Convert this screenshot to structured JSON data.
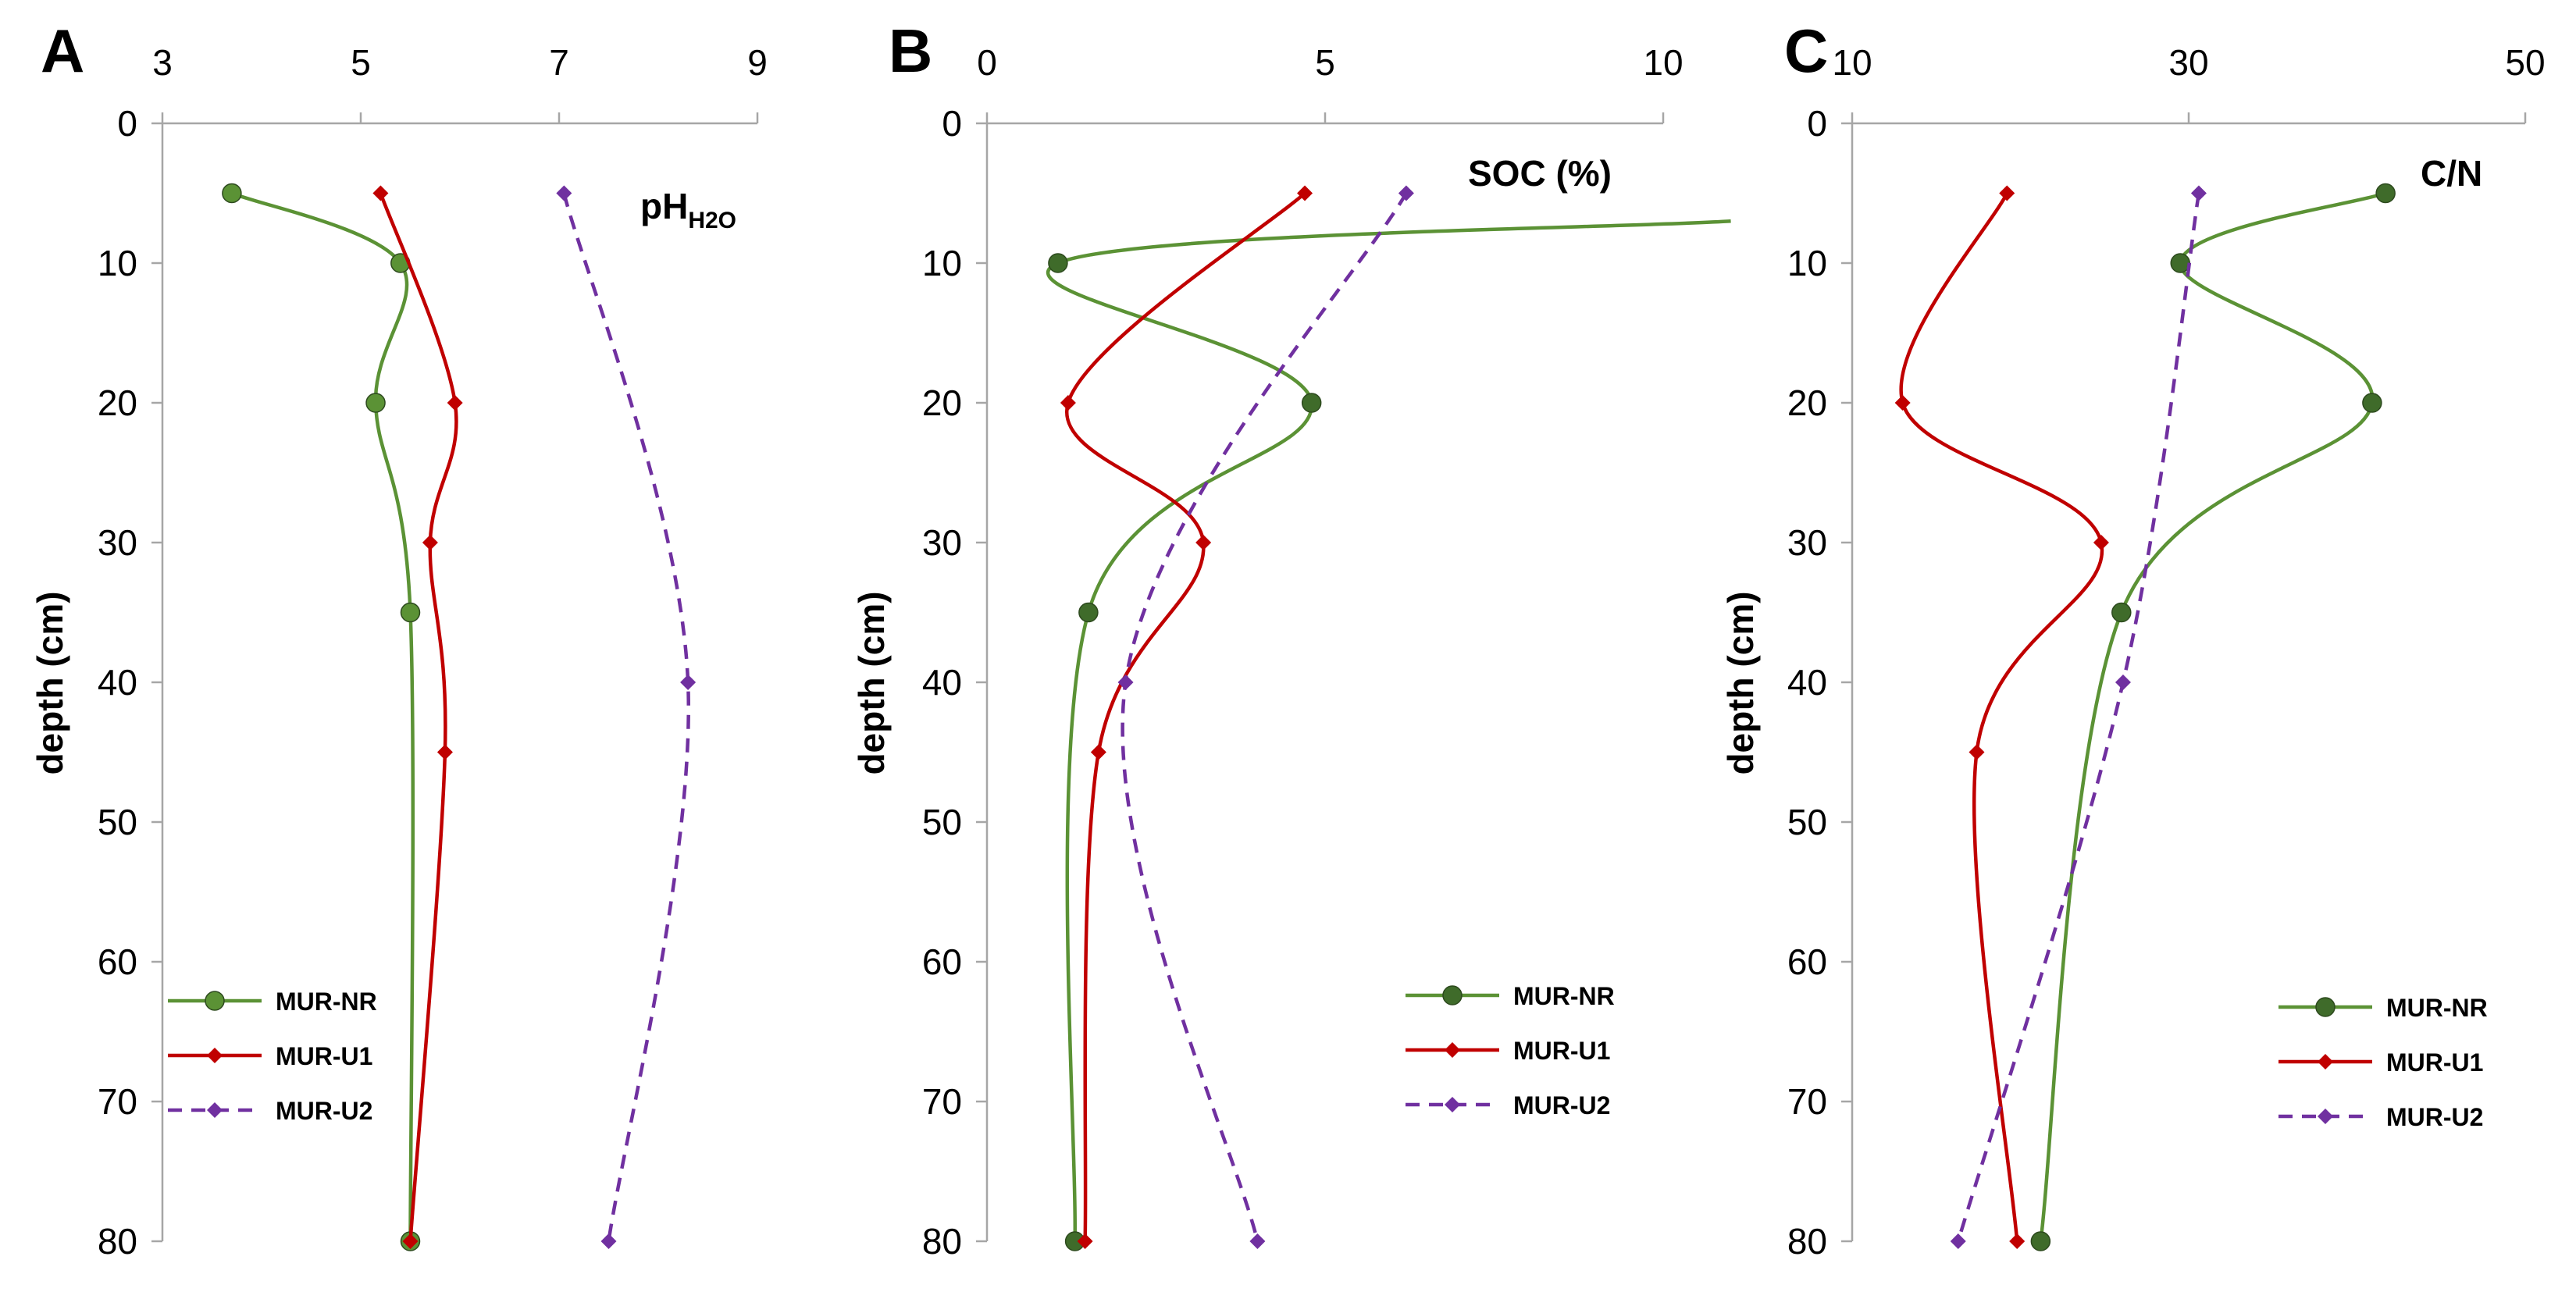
{
  "figure": {
    "colors": {
      "MUR-NR_A": "#5b9235",
      "MUR-NR": "#3f6b2a",
      "MUR-NR_line": "#5b9235",
      "MUR-U1": "#c00000",
      "MUR-U2": "#7030a0",
      "axis": "#a6a6a6",
      "text": "#000000"
    }
  },
  "chart_data": [
    {
      "panel": "A",
      "type": "line",
      "orientation": "depth-profile",
      "title": "pH",
      "title_subscript": "H2O",
      "ylabel": "depth (cm)",
      "xlim": [
        3,
        9
      ],
      "ylim": [
        0,
        80
      ],
      "y_inverted": true,
      "x_ticks": [
        "3",
        "5",
        "7",
        "9"
      ],
      "y_ticks": [
        "0",
        "10",
        "20",
        "30",
        "40",
        "50",
        "60",
        "70",
        "80"
      ],
      "legend": [
        "MUR-NR",
        "MUR-U1",
        "MUR-U2"
      ],
      "legend_position": "bottom-left",
      "series": [
        {
          "name": "MUR-NR",
          "color_key": "MUR-NR_A",
          "marker": "circle",
          "dash": false,
          "points": [
            [
              3.7,
              5
            ],
            [
              5.4,
              10
            ],
            [
              5.15,
              20
            ],
            [
              5.5,
              35
            ],
            [
              5.5,
              80
            ]
          ]
        },
        {
          "name": "MUR-U1",
          "color_key": "MUR-U1",
          "marker": "diamond",
          "dash": false,
          "points": [
            [
              5.2,
              5
            ],
            [
              5.95,
              20
            ],
            [
              5.7,
              30
            ],
            [
              5.85,
              45
            ],
            [
              5.5,
              80
            ]
          ]
        },
        {
          "name": "MUR-U2",
          "color_key": "MUR-U2",
          "marker": "diamond",
          "dash": true,
          "points": [
            [
              7.05,
              5
            ],
            [
              8.3,
              40
            ],
            [
              7.5,
              80
            ]
          ]
        }
      ]
    },
    {
      "panel": "B",
      "type": "line",
      "orientation": "depth-profile",
      "title": "SOC (%)",
      "ylabel": "depth (cm)",
      "xlim": [
        0,
        10
      ],
      "ylim": [
        0,
        80
      ],
      "y_inverted": true,
      "x_ticks": [
        "0",
        "5",
        "10"
      ],
      "y_ticks": [
        "0",
        "10",
        "20",
        "30",
        "40",
        "50",
        "60",
        "70",
        "80"
      ],
      "legend": [
        "MUR-NR",
        "MUR-U1",
        "MUR-U2"
      ],
      "legend_position": "bottom-right",
      "series": [
        {
          "name": "MUR-NR",
          "color_key": "MUR-NR",
          "marker": "circle",
          "dash": false,
          "points": [
            [
              11,
              7
            ],
            [
              1.05,
              10
            ],
            [
              4.8,
              20
            ],
            [
              1.5,
              35
            ],
            [
              1.3,
              80
            ]
          ]
        },
        {
          "name": "MUR-U1",
          "color_key": "MUR-U1",
          "marker": "diamond",
          "dash": false,
          "points": [
            [
              4.7,
              5
            ],
            [
              1.2,
              20
            ],
            [
              3.2,
              30
            ],
            [
              1.65,
              45
            ],
            [
              1.45,
              80
            ]
          ]
        },
        {
          "name": "MUR-U2",
          "color_key": "MUR-U2",
          "marker": "diamond",
          "dash": true,
          "points": [
            [
              6.2,
              5
            ],
            [
              2.05,
              40
            ],
            [
              4.0,
              80
            ]
          ]
        }
      ]
    },
    {
      "panel": "C",
      "type": "line",
      "orientation": "depth-profile",
      "title": "C/N",
      "ylabel": "depth (cm)",
      "xlim": [
        10,
        50
      ],
      "ylim": [
        0,
        80
      ],
      "y_inverted": true,
      "x_ticks": [
        "10",
        "30",
        "50"
      ],
      "y_ticks": [
        "0",
        "10",
        "20",
        "30",
        "40",
        "50",
        "60",
        "70",
        "80"
      ],
      "legend": [
        "MUR-NR",
        "MUR-U1",
        "MUR-U2"
      ],
      "legend_position": "bottom-right",
      "series": [
        {
          "name": "MUR-NR",
          "color_key": "MUR-NR",
          "marker": "circle",
          "dash": false,
          "points": [
            [
              41.7,
              5
            ],
            [
              29.5,
              10
            ],
            [
              40.9,
              20
            ],
            [
              26.0,
              35
            ],
            [
              21.2,
              80
            ]
          ]
        },
        {
          "name": "MUR-U1",
          "color_key": "MUR-U1",
          "marker": "diamond",
          "dash": false,
          "points": [
            [
              19.2,
              5
            ],
            [
              13.0,
              20
            ],
            [
              24.8,
              30
            ],
            [
              17.4,
              45
            ],
            [
              19.8,
              80
            ]
          ]
        },
        {
          "name": "MUR-U2",
          "color_key": "MUR-U2",
          "marker": "diamond",
          "dash": true,
          "points": [
            [
              30.6,
              5
            ],
            [
              26.1,
              40
            ],
            [
              16.3,
              80
            ]
          ]
        }
      ]
    }
  ]
}
